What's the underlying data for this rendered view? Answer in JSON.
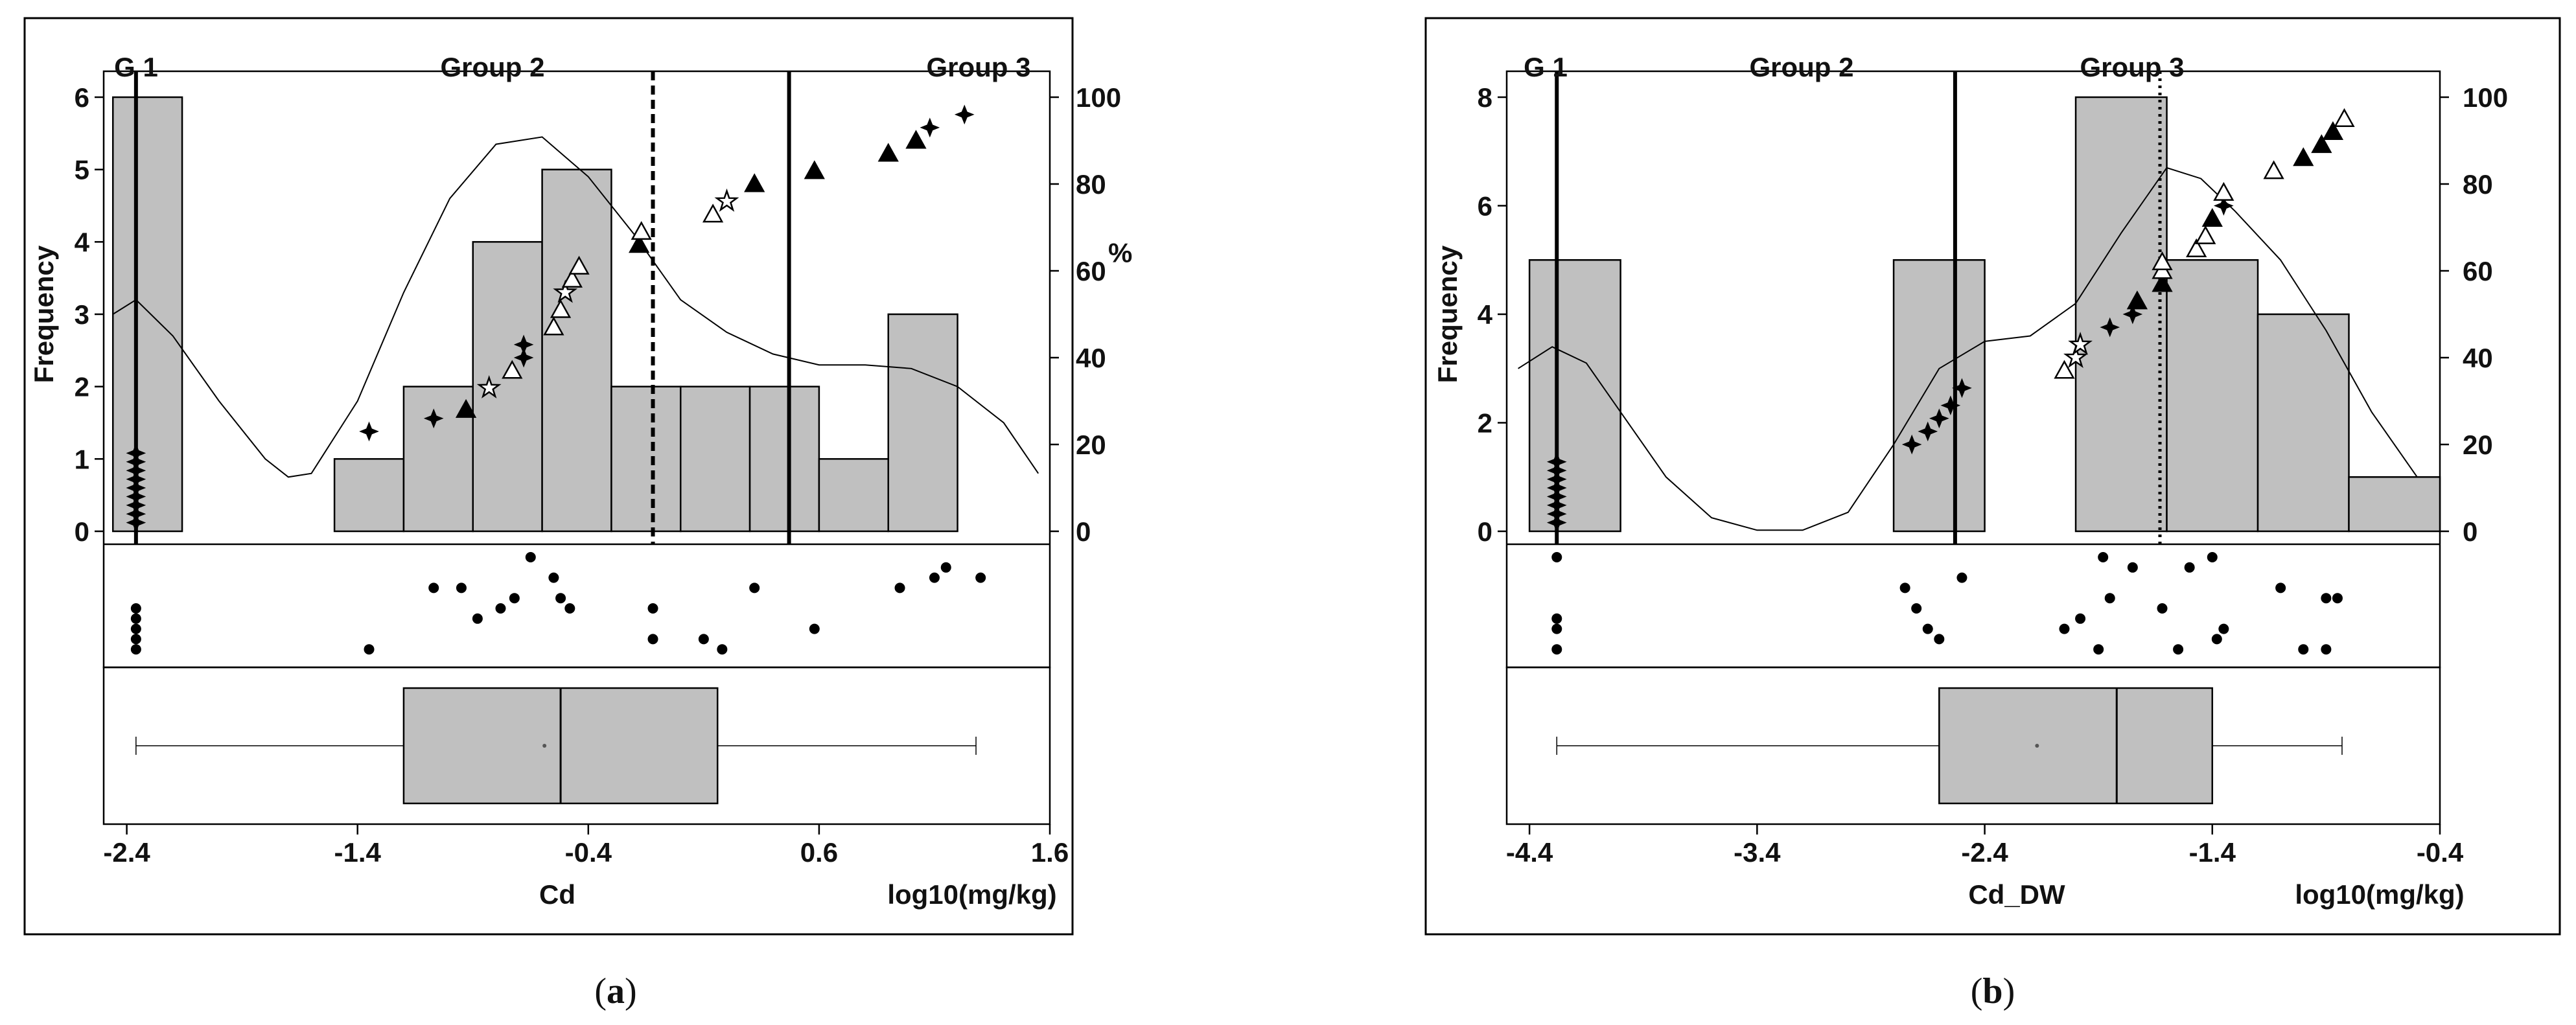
{
  "chart_data": [
    {
      "type": "bar",
      "panel_label": "a",
      "xlabel": "Cd",
      "units": "log10(mg/kg)",
      "ylabel": "Frequency",
      "y2label": "%",
      "group_labels": [
        "G 1",
        "Group 2",
        "Group 3"
      ],
      "xlim": [
        -2.5,
        1.6
      ],
      "ylim": [
        0,
        6
      ],
      "y2lim": [
        0,
        100
      ],
      "xticks": [
        "-2.4",
        "-1.4",
        "-0.4",
        "0.6",
        "1.6"
      ],
      "yticks": [
        "0",
        "1",
        "2",
        "3",
        "4",
        "5",
        "6"
      ],
      "y2ticks": [
        "0",
        "20",
        "40",
        "60",
        "80",
        "100"
      ],
      "bins": [
        {
          "x0": -2.46,
          "x1": -2.16,
          "count": 6
        },
        {
          "x0": -1.5,
          "x1": -1.2,
          "count": 1
        },
        {
          "x0": -1.2,
          "x1": -0.9,
          "count": 2
        },
        {
          "x0": -0.9,
          "x1": -0.6,
          "count": 4
        },
        {
          "x0": -0.6,
          "x1": -0.3,
          "count": 5
        },
        {
          "x0": -0.3,
          "x1": 0.0,
          "count": 2
        },
        {
          "x0": 0.0,
          "x1": 0.3,
          "count": 2
        },
        {
          "x0": 0.3,
          "x1": 0.6,
          "count": 2
        },
        {
          "x0": 0.6,
          "x1": 0.9,
          "count": 1
        },
        {
          "x0": 0.9,
          "x1": 1.2,
          "count": 3
        }
      ],
      "thresholds": [
        {
          "x": -2.36,
          "style": "solid"
        },
        {
          "x": -0.12,
          "style": "dashed"
        },
        {
          "x": 0.47,
          "style": "solid"
        }
      ],
      "density_curve": [
        [
          -2.46,
          3.0
        ],
        [
          -2.36,
          3.2
        ],
        [
          -2.2,
          2.7
        ],
        [
          -2.0,
          1.8
        ],
        [
          -1.8,
          1.0
        ],
        [
          -1.7,
          0.75
        ],
        [
          -1.6,
          0.8
        ],
        [
          -1.4,
          1.8
        ],
        [
          -1.2,
          3.3
        ],
        [
          -1.0,
          4.6
        ],
        [
          -0.8,
          5.35
        ],
        [
          -0.6,
          5.45
        ],
        [
          -0.4,
          4.9
        ],
        [
          -0.2,
          4.1
        ],
        [
          0.0,
          3.2
        ],
        [
          0.2,
          2.75
        ],
        [
          0.4,
          2.45
        ],
        [
          0.6,
          2.3
        ],
        [
          0.8,
          2.3
        ],
        [
          1.0,
          2.25
        ],
        [
          1.2,
          2.0
        ],
        [
          1.4,
          1.5
        ],
        [
          1.55,
          0.8
        ]
      ],
      "cumulative_points": [
        {
          "x": -2.36,
          "p": 2,
          "m": "plus"
        },
        {
          "x": -2.36,
          "p": 4,
          "m": "plus"
        },
        {
          "x": -2.36,
          "p": 6,
          "m": "plus"
        },
        {
          "x": -2.36,
          "p": 8,
          "m": "plus"
        },
        {
          "x": -2.36,
          "p": 10,
          "m": "plus"
        },
        {
          "x": -2.36,
          "p": 12,
          "m": "plus"
        },
        {
          "x": -2.36,
          "p": 14,
          "m": "plus"
        },
        {
          "x": -2.36,
          "p": 16,
          "m": "plus"
        },
        {
          "x": -2.36,
          "p": 18,
          "m": "plus"
        },
        {
          "x": -1.35,
          "p": 23,
          "m": "plus"
        },
        {
          "x": -1.07,
          "p": 26,
          "m": "plus"
        },
        {
          "x": -0.93,
          "p": 28,
          "m": "tri"
        },
        {
          "x": -0.83,
          "p": 33,
          "m": "star"
        },
        {
          "x": -0.73,
          "p": 37,
          "m": "tri-open"
        },
        {
          "x": -0.68,
          "p": 40,
          "m": "plus"
        },
        {
          "x": -0.68,
          "p": 43,
          "m": "plus"
        },
        {
          "x": -0.55,
          "p": 47,
          "m": "tri-open"
        },
        {
          "x": -0.52,
          "p": 51,
          "m": "tri-open"
        },
        {
          "x": -0.5,
          "p": 55,
          "m": "star"
        },
        {
          "x": -0.47,
          "p": 58,
          "m": "tri-open"
        },
        {
          "x": -0.44,
          "p": 61,
          "m": "tri-open"
        },
        {
          "x": -0.18,
          "p": 66,
          "m": "tri"
        },
        {
          "x": -0.17,
          "p": 69,
          "m": "tri-open"
        },
        {
          "x": 0.14,
          "p": 73,
          "m": "tri-open"
        },
        {
          "x": 0.2,
          "p": 76,
          "m": "star"
        },
        {
          "x": 0.32,
          "p": 80,
          "m": "tri"
        },
        {
          "x": 0.58,
          "p": 83,
          "m": "tri"
        },
        {
          "x": 0.9,
          "p": 87,
          "m": "tri"
        },
        {
          "x": 1.02,
          "p": 90,
          "m": "tri"
        },
        {
          "x": 1.08,
          "p": 93,
          "m": "plus"
        },
        {
          "x": 1.23,
          "p": 96,
          "m": "plus"
        }
      ],
      "dot_strip": [
        [
          -2.36,
          5
        ],
        [
          -2.36,
          4
        ],
        [
          -2.36,
          3
        ],
        [
          -2.36,
          2
        ],
        [
          -2.36,
          1
        ],
        [
          -1.35,
          1
        ],
        [
          -1.07,
          7
        ],
        [
          -0.95,
          7
        ],
        [
          -0.88,
          4
        ],
        [
          -0.78,
          5
        ],
        [
          -0.72,
          6
        ],
        [
          -0.65,
          10
        ],
        [
          -0.55,
          8
        ],
        [
          -0.52,
          6
        ],
        [
          -0.48,
          5
        ],
        [
          -0.12,
          2
        ],
        [
          -0.12,
          5
        ],
        [
          0.1,
          2
        ],
        [
          0.18,
          1
        ],
        [
          0.32,
          7
        ],
        [
          0.58,
          3
        ],
        [
          0.95,
          7
        ],
        [
          1.1,
          8
        ],
        [
          1.15,
          9
        ],
        [
          1.3,
          8
        ]
      ],
      "boxplot": {
        "min": -2.36,
        "q1": -1.2,
        "median": -0.52,
        "mean": -0.59,
        "q3": 0.16,
        "max": 1.28
      }
    },
    {
      "type": "bar",
      "panel_label": "b",
      "xlabel": "Cd_DW",
      "units": "log10(mg/kg)",
      "ylabel": "Frequency",
      "y2label": "",
      "group_labels": [
        "G 1",
        "Group 2",
        "Group 3"
      ],
      "xlim": [
        -4.5,
        -0.4
      ],
      "ylim": [
        0,
        8
      ],
      "y2lim": [
        0,
        100
      ],
      "xticks": [
        "-4.4",
        "-3.4",
        "-2.4",
        "-1.4",
        "-0.4"
      ],
      "yticks": [
        "0",
        "2",
        "4",
        "6",
        "8"
      ],
      "y2ticks": [
        "0",
        "20",
        "40",
        "60",
        "80",
        "100"
      ],
      "bins": [
        {
          "x0": -4.4,
          "x1": -4.0,
          "count": 5
        },
        {
          "x0": -2.8,
          "x1": -2.4,
          "count": 5
        },
        {
          "x0": -2.0,
          "x1": -1.6,
          "count": 8
        },
        {
          "x0": -1.6,
          "x1": -1.2,
          "count": 5
        },
        {
          "x0": -1.2,
          "x1": -0.8,
          "count": 4
        },
        {
          "x0": -0.8,
          "x1": -0.4,
          "count": 1
        }
      ],
      "thresholds": [
        {
          "x": -4.28,
          "style": "solid"
        },
        {
          "x": -2.53,
          "style": "solid"
        },
        {
          "x": -1.63,
          "style": "dotted"
        }
      ],
      "density_curve": [
        [
          -4.45,
          3.0
        ],
        [
          -4.3,
          3.4
        ],
        [
          -4.15,
          3.1
        ],
        [
          -4.0,
          2.2
        ],
        [
          -3.8,
          1.0
        ],
        [
          -3.6,
          0.25
        ],
        [
          -3.4,
          0.02
        ],
        [
          -3.2,
          0.02
        ],
        [
          -3.0,
          0.35
        ],
        [
          -2.8,
          1.6
        ],
        [
          -2.6,
          3.0
        ],
        [
          -2.4,
          3.5
        ],
        [
          -2.2,
          3.6
        ],
        [
          -2.0,
          4.2
        ],
        [
          -1.8,
          5.5
        ],
        [
          -1.6,
          6.7
        ],
        [
          -1.45,
          6.5
        ],
        [
          -1.3,
          5.9
        ],
        [
          -1.1,
          5.0
        ],
        [
          -0.9,
          3.7
        ],
        [
          -0.7,
          2.2
        ],
        [
          -0.5,
          1.0
        ]
      ],
      "cumulative_points": [
        {
          "x": -4.28,
          "p": 2,
          "m": "plus"
        },
        {
          "x": -4.28,
          "p": 4,
          "m": "plus"
        },
        {
          "x": -4.28,
          "p": 6,
          "m": "plus"
        },
        {
          "x": -4.28,
          "p": 8,
          "m": "plus"
        },
        {
          "x": -4.28,
          "p": 10,
          "m": "plus"
        },
        {
          "x": -4.28,
          "p": 12,
          "m": "plus"
        },
        {
          "x": -4.28,
          "p": 14,
          "m": "plus"
        },
        {
          "x": -4.28,
          "p": 16,
          "m": "plus"
        },
        {
          "x": -2.72,
          "p": 20,
          "m": "plus"
        },
        {
          "x": -2.65,
          "p": 23,
          "m": "plus"
        },
        {
          "x": -2.6,
          "p": 26,
          "m": "plus"
        },
        {
          "x": -2.55,
          "p": 29,
          "m": "plus"
        },
        {
          "x": -2.5,
          "p": 33,
          "m": "plus"
        },
        {
          "x": -2.05,
          "p": 37,
          "m": "tri-open"
        },
        {
          "x": -2.0,
          "p": 40,
          "m": "star"
        },
        {
          "x": -1.98,
          "p": 43,
          "m": "star"
        },
        {
          "x": -1.85,
          "p": 47,
          "m": "plus"
        },
        {
          "x": -1.75,
          "p": 50,
          "m": "plus"
        },
        {
          "x": -1.73,
          "p": 53,
          "m": "tri"
        },
        {
          "x": -1.62,
          "p": 57,
          "m": "tri"
        },
        {
          "x": -1.62,
          "p": 60,
          "m": "tri-open"
        },
        {
          "x": -1.62,
          "p": 62,
          "m": "tri-open"
        },
        {
          "x": -1.47,
          "p": 65,
          "m": "tri-open"
        },
        {
          "x": -1.43,
          "p": 68,
          "m": "tri-open"
        },
        {
          "x": -1.4,
          "p": 72,
          "m": "tri"
        },
        {
          "x": -1.35,
          "p": 75,
          "m": "plus"
        },
        {
          "x": -1.35,
          "p": 78,
          "m": "tri-open"
        },
        {
          "x": -1.13,
          "p": 83,
          "m": "tri-open"
        },
        {
          "x": -1.0,
          "p": 86,
          "m": "tri"
        },
        {
          "x": -0.92,
          "p": 89,
          "m": "tri"
        },
        {
          "x": -0.87,
          "p": 92,
          "m": "tri"
        },
        {
          "x": -0.82,
          "p": 95,
          "m": "tri-open"
        }
      ],
      "dot_strip": [
        [
          -4.28,
          10
        ],
        [
          -4.28,
          4
        ],
        [
          -4.28,
          3
        ],
        [
          -4.28,
          1
        ],
        [
          -2.75,
          7
        ],
        [
          -2.7,
          5
        ],
        [
          -2.65,
          3
        ],
        [
          -2.6,
          2
        ],
        [
          -2.5,
          8
        ],
        [
          -2.05,
          3
        ],
        [
          -1.98,
          4
        ],
        [
          -1.9,
          1
        ],
        [
          -1.88,
          10
        ],
        [
          -1.85,
          6
        ],
        [
          -1.75,
          9
        ],
        [
          -1.62,
          5
        ],
        [
          -1.55,
          1
        ],
        [
          -1.5,
          9
        ],
        [
          -1.4,
          10
        ],
        [
          -1.38,
          2
        ],
        [
          -1.35,
          3
        ],
        [
          -1.1,
          7
        ],
        [
          -1.0,
          1
        ],
        [
          -0.9,
          1
        ],
        [
          -0.9,
          6
        ],
        [
          -0.85,
          6
        ]
      ],
      "boxplot": {
        "min": -4.28,
        "q1": -2.6,
        "median": -1.82,
        "mean": -2.17,
        "q3": -1.4,
        "max": -0.83
      }
    }
  ]
}
